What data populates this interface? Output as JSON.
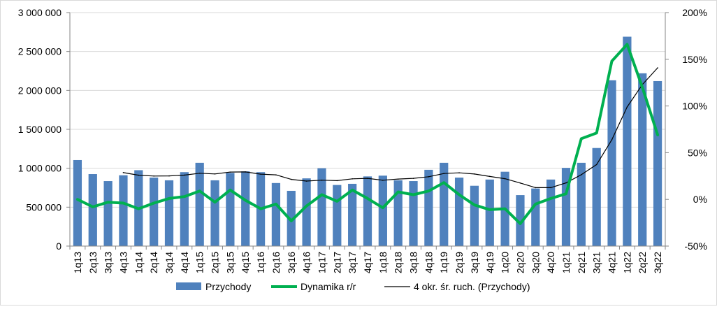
{
  "chart_data": {
    "type": "bar",
    "categories": [
      "1q13",
      "2q13",
      "3q13",
      "4q13",
      "1q14",
      "2q14",
      "3q14",
      "4q14",
      "1q15",
      "2q15",
      "3q15",
      "4q15",
      "1q16",
      "2q16",
      "3q16",
      "4q16",
      "1q17",
      "2q17",
      "3q17",
      "4q17",
      "1q18",
      "2q18",
      "3q18",
      "4q18",
      "1q19",
      "2q19",
      "3q19",
      "4q19",
      "1q20",
      "2q20",
      "3q20",
      "4q20",
      "1q21",
      "2q21",
      "3q21",
      "4q21",
      "1q22",
      "2q22",
      "3q22"
    ],
    "series": [
      {
        "name": "Przychody",
        "kind": "bar",
        "axis": "left",
        "color": "#4f81bd",
        "values": [
          1105000,
          925000,
          835000,
          910000,
          975000,
          880000,
          845000,
          950000,
          1070000,
          845000,
          940000,
          960000,
          950000,
          810000,
          710000,
          870000,
          1000000,
          785000,
          800000,
          895000,
          905000,
          845000,
          835000,
          980000,
          1070000,
          880000,
          775000,
          855000,
          955000,
          655000,
          740000,
          855000,
          1005000,
          1070000,
          1260000,
          2130000,
          2690000,
          2220000,
          2120000
        ]
      },
      {
        "name": "Dynamika r/r",
        "kind": "line",
        "axis": "right",
        "color": "#00b050",
        "values": [
          0,
          -8,
          -3,
          -4,
          -10,
          -4,
          1,
          3,
          9,
          -3,
          10,
          -1,
          -10,
          -5,
          -23,
          -7,
          5,
          -2,
          10,
          1,
          -9,
          8,
          5,
          9,
          18,
          5,
          -6,
          -11,
          -10,
          -26,
          -5,
          1,
          6,
          65,
          71,
          148,
          166,
          120,
          69
        ]
      },
      {
        "name": "4 okr. śr. ruch. (Przychody)",
        "kind": "line",
        "axis": "left",
        "color": "#000000",
        "values": [
          null,
          null,
          null,
          944000,
          911000,
          900000,
          902000,
          912000,
          936000,
          927000,
          951000,
          953000,
          924000,
          915000,
          857000,
          835000,
          847000,
          841000,
          864000,
          870000,
          846000,
          861000,
          870000,
          891000,
          932000,
          941000,
          926000,
          895000,
          866000,
          810000,
          751000,
          751000,
          812000,
          917000,
          1047000,
          1366000,
          1787000,
          2075000,
          2290000
        ]
      }
    ],
    "left_axis": {
      "min": 0,
      "max": 3000000,
      "ticks": [
        "0",
        "500 000",
        "1 000 000",
        "1 500 000",
        "2 000 000",
        "2 500 000",
        "3 000 000"
      ]
    },
    "right_axis": {
      "min": -50,
      "max": 200,
      "ticks": [
        "-50%",
        "0%",
        "50%",
        "100%",
        "150%",
        "200%"
      ]
    },
    "grid": "horizontal",
    "legend_position": "bottom"
  }
}
